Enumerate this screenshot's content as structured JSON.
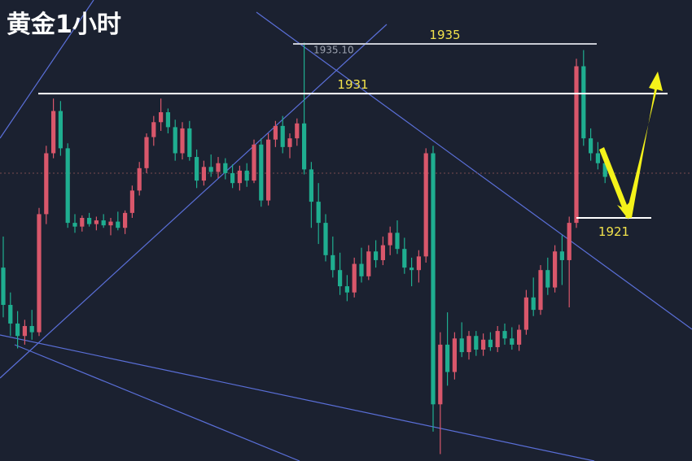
{
  "chart_data": {
    "type": "candlestick",
    "title": "黄金1小时",
    "ylim": [
      1901.44,
      1938.53
    ],
    "up_color": "#d9576b",
    "down_color": "#1fae90",
    "levels": [
      1935,
      1931,
      1921
    ],
    "high_label": {
      "value": 1935.1,
      "label": "1935.10"
    },
    "open": [
      1917,
      1914,
      1912.5,
      1911.5,
      1912.3,
      1911.8,
      1921.3,
      1926.2,
      1929.6,
      1926.6,
      1920.6,
      1920.3,
      1921,
      1920.5,
      1920.8,
      1920.4,
      1920.7,
      1920.2,
      1921.4,
      1923.2,
      1925,
      1927.5,
      1928.7,
      1929.5,
      1928.3,
      1926.2,
      1928.2,
      1925.9,
      1924,
      1925.1,
      1924.7,
      1925.4,
      1924.6,
      1923.8,
      1924.8,
      1924,
      1926.9,
      1922.4,
      1927.3,
      1928.4,
      1926.7,
      1927.4,
      1928.6,
      1924.9,
      1922.3,
      1920.6,
      1918,
      1916.8,
      1915.5,
      1915,
      1917.3,
      1916.3,
      1918.3,
      1917.6,
      1918.8,
      1919.8,
      1918.5,
      1917,
      1916.8,
      1917.9,
      1926.2,
      1906,
      1910.8,
      1908.6,
      1911.3,
      1910.2,
      1911.5,
      1910.4,
      1911.2,
      1910.6,
      1911.9,
      1911.3,
      1910.8,
      1912,
      1914.6,
      1913.6,
      1916.8,
      1915.4,
      1918.3,
      1917.6,
      1920.6,
      1933.2,
      1927.4,
      1926.2,
      1925.4
    ],
    "high": [
      1919.5,
      1915,
      1913.5,
      1912.8,
      1913.6,
      1921.8,
      1926.8,
      1930.6,
      1930.4,
      1927,
      1921.3,
      1921.2,
      1921.4,
      1921.1,
      1921.3,
      1921,
      1921.5,
      1921.6,
      1923.6,
      1925.5,
      1927.8,
      1929.2,
      1930.6,
      1929.8,
      1928.9,
      1928.7,
      1928.8,
      1926.5,
      1925.6,
      1926.1,
      1925.9,
      1925.8,
      1925.3,
      1925.2,
      1925.4,
      1927.3,
      1927.4,
      1927.8,
      1928.8,
      1929.2,
      1927.8,
      1929,
      1935.1,
      1925.5,
      1923.8,
      1921.3,
      1919.5,
      1918.2,
      1916.4,
      1917.8,
      1918.6,
      1918.8,
      1919.2,
      1919.5,
      1920.3,
      1920.8,
      1919.4,
      1917.8,
      1918.4,
      1926.6,
      1926.8,
      1911.8,
      1913.4,
      1911.8,
      1912.6,
      1911.9,
      1911.9,
      1911.7,
      1911.8,
      1912.3,
      1912.5,
      1912.2,
      1912.4,
      1915.2,
      1916.2,
      1917.2,
      1917.8,
      1918.8,
      1919.6,
      1921.1,
      1933.8,
      1934.5,
      1928.2,
      1927.1,
      1925.9
    ],
    "low": [
      1913,
      1911.5,
      1910.5,
      1910.8,
      1911.2,
      1911.5,
      1920.5,
      1925.8,
      1926,
      1920.2,
      1919.8,
      1919.9,
      1920.3,
      1920,
      1920.2,
      1919.6,
      1920,
      1919.7,
      1921,
      1922.8,
      1924.6,
      1926.8,
      1928,
      1927.8,
      1925.6,
      1925.7,
      1925.6,
      1923.4,
      1923.6,
      1924.3,
      1924.2,
      1924.1,
      1923.4,
      1923.2,
      1923.5,
      1923.8,
      1921.9,
      1922,
      1926.7,
      1926.2,
      1925.8,
      1926.8,
      1924.5,
      1920.2,
      1918.9,
      1917.5,
      1916.2,
      1914.8,
      1914.3,
      1914.6,
      1915.8,
      1916,
      1917,
      1917.2,
      1918,
      1918.1,
      1916.5,
      1915.5,
      1915.8,
      1917.4,
      1903.8,
      1902,
      1907.5,
      1908,
      1909.8,
      1909.6,
      1909.9,
      1909.9,
      1910.3,
      1910.2,
      1910.8,
      1910.4,
      1910.3,
      1911.6,
      1913.1,
      1913.2,
      1914.8,
      1915,
      1915.6,
      1913.8,
      1920.2,
      1926.8,
      1925.6,
      1924.9,
      1923.8
    ],
    "close": [
      1914,
      1912.5,
      1911.5,
      1912.3,
      1911.8,
      1921.3,
      1926.2,
      1929.6,
      1926.6,
      1920.6,
      1920.3,
      1921,
      1920.5,
      1920.8,
      1920.4,
      1920.7,
      1920.2,
      1921.4,
      1923.2,
      1925,
      1927.5,
      1928.7,
      1929.5,
      1928.3,
      1926.2,
      1928.2,
      1925.9,
      1924,
      1925.1,
      1924.7,
      1925.4,
      1924.6,
      1923.8,
      1924.8,
      1924,
      1926.9,
      1922.4,
      1927.3,
      1928.4,
      1926.7,
      1927.4,
      1928.6,
      1924.9,
      1922.3,
      1920.6,
      1918,
      1916.8,
      1915.5,
      1915,
      1917.3,
      1916.3,
      1918.3,
      1917.6,
      1918.8,
      1919.8,
      1918.5,
      1917,
      1916.8,
      1917.9,
      1926.2,
      1906,
      1910.8,
      1908.6,
      1911.3,
      1910.2,
      1911.5,
      1910.4,
      1911.2,
      1910.6,
      1911.9,
      1911.3,
      1910.8,
      1912,
      1914.6,
      1913.6,
      1916.8,
      1915.4,
      1918.3,
      1917.6,
      1920.6,
      1933.2,
      1927.4,
      1926.2,
      1925.4,
      1924.3
    ]
  }
}
